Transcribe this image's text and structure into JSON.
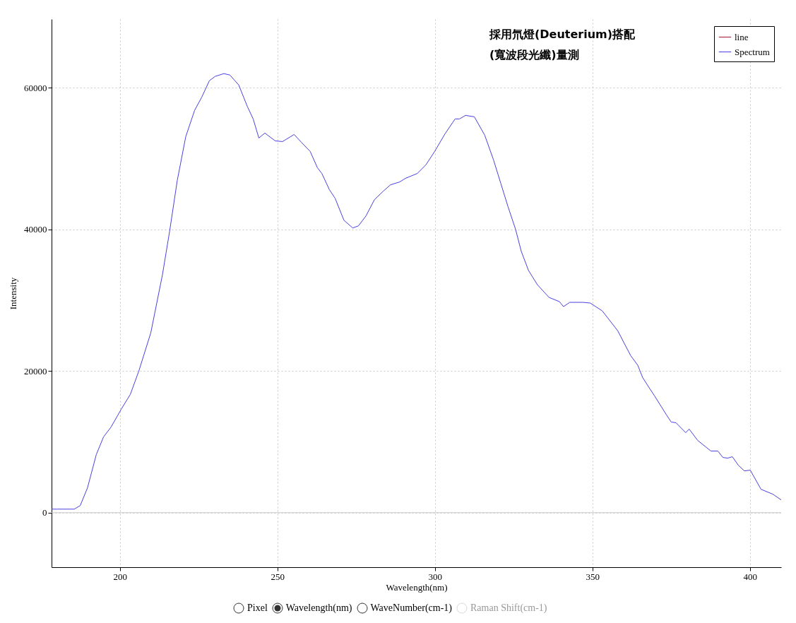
{
  "chart_data": {
    "type": "line",
    "title": "採用氘燈(Deuterium)搭配",
    "subtitle": "(寬波段光纖)量測",
    "xlabel": "Wavelength(nm)",
    "ylabel": "Intensity",
    "annotations": [
      "Pixel",
      "Wavelength(nm)",
      "WaveNumber(cm-1)",
      "Raman Shift(cm-1)"
    ],
    "x": [
      178.3,
      180,
      185.5,
      187.4,
      189.7,
      192.5,
      194.8,
      197.2,
      200.4,
      203.3,
      206,
      209.8,
      213.5,
      215.8,
      218.2,
      220.9,
      223.7,
      226,
      228.4,
      230.2,
      233,
      234.9,
      237.7,
      240.5,
      242.3,
      244.1,
      246,
      249.3,
      251.6,
      255.3,
      257.6,
      260.4,
      262.7,
      264.1,
      266.5,
      268.3,
      271.1,
      273.9,
      275.7,
      278.1,
      280.8,
      283.6,
      285.9,
      288.8,
      290.6,
      294.4,
      297.1,
      299.9,
      303.2,
      306.4,
      307.8,
      309.7,
      312.5,
      315.8,
      318.6,
      320.9,
      323.2,
      325.6,
      327.4,
      329.7,
      332.5,
      336.2,
      339.5,
      340.8,
      342.8,
      347,
      349.3,
      353.1,
      358,
      362.1,
      364.4,
      365.9,
      368.2,
      369.7,
      373.5,
      375,
      376.5,
      379.6,
      380.7,
      383.4,
      387.6,
      389.8,
      391.4,
      392.9,
      394.4,
      396.3,
      398.2,
      400.1,
      403.5,
      407.3,
      409.9
    ],
    "series": [
      {
        "name": "line",
        "color": "#a01830",
        "values": [
          null,
          null,
          null,
          null,
          null,
          null,
          null,
          null,
          null,
          null,
          null,
          null,
          null,
          null,
          null,
          null,
          null,
          null,
          null,
          null,
          null,
          null,
          null,
          null,
          null,
          null,
          null,
          null,
          null,
          null,
          null,
          null,
          null,
          null,
          null,
          null,
          null,
          null,
          null,
          null,
          null,
          null,
          null,
          null,
          null,
          null,
          null,
          null,
          null,
          null,
          null,
          null,
          null,
          null,
          null,
          null,
          null,
          null,
          null,
          null,
          null,
          null,
          null,
          null,
          null,
          null,
          null,
          null,
          null,
          null,
          null,
          null,
          null,
          null,
          null,
          null,
          null,
          null,
          null,
          null,
          null,
          null,
          null,
          null,
          null,
          null,
          null,
          null,
          null,
          null,
          null
        ]
      },
      {
        "name": "Spectrum",
        "color": "#4a3fe0",
        "values": [
          500,
          500,
          500,
          1000,
          3500,
          8200,
          10700,
          12100,
          14600,
          16700,
          20000,
          25400,
          33600,
          39800,
          46900,
          53100,
          56800,
          58700,
          61000,
          61600,
          62000,
          61800,
          60400,
          57300,
          55600,
          52900,
          53600,
          52500,
          52400,
          53400,
          52300,
          51000,
          48700,
          47900,
          45600,
          44400,
          41300,
          40200,
          40500,
          41900,
          44200,
          45400,
          46300,
          46700,
          47200,
          47900,
          49100,
          51000,
          53500,
          55600,
          55600,
          56100,
          55900,
          53300,
          49800,
          46500,
          43200,
          40000,
          36900,
          34200,
          32200,
          30400,
          29800,
          29100,
          29700,
          29700,
          29600,
          28500,
          25700,
          22200,
          20800,
          19100,
          17500,
          16500,
          13800,
          12800,
          12700,
          11300,
          11800,
          10200,
          8700,
          8700,
          7800,
          7700,
          7900,
          6700,
          5900,
          6000,
          3300,
          2600,
          1800
        ]
      }
    ],
    "xlim": [
      178.3,
      409.9
    ],
    "xticks": [
      200,
      250,
      300,
      350,
      400
    ],
    "ylim": [
      -7700,
      69700
    ],
    "yticks": [
      0,
      20000,
      40000,
      60000
    ],
    "ref_lines": [
      {
        "axis": "y",
        "value": 0,
        "color": "#c8c8c8"
      }
    ],
    "grid": true,
    "legend": "top right"
  }
}
